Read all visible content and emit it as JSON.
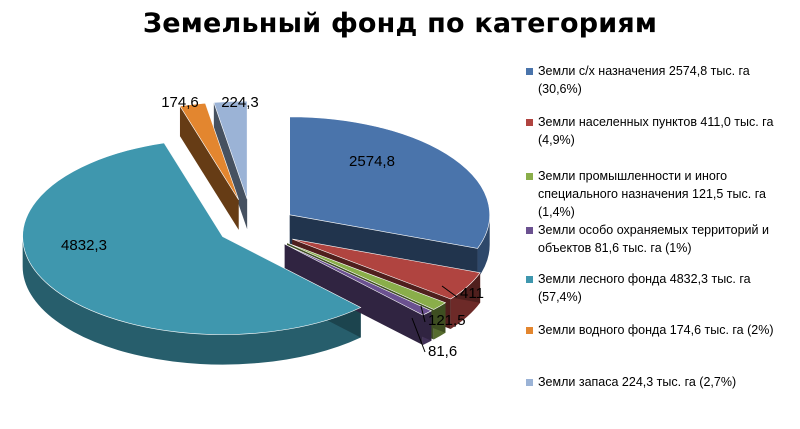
{
  "title": "Земельный фонд по категориям",
  "chart_data": {
    "type": "pie",
    "title": "Земельный фонд по категориям",
    "unit": "тыс. га",
    "style": "3d-exploded",
    "legend_position": "right",
    "slices": [
      {
        "name": "Земли с/х назначения",
        "value": 2574.8,
        "label": "2574,8",
        "color": "#4a74ab",
        "legend": "Земли с/х назначения 2574,8 тыс. га (30,6%)"
      },
      {
        "name": "Земли населенных пунктов",
        "value": 411.0,
        "label": "411",
        "color": "#b04440",
        "legend": "Земли населенных пунктов 411,0 тыс. га (4,9%)"
      },
      {
        "name": "Земли промышленности и иного специального назначения",
        "value": 121.5,
        "label": "121,5",
        "color": "#8aae4a",
        "legend": "Земли промышленности и иного специального назначения 121,5 тыс. га (1,4%)"
      },
      {
        "name": "Земли особо охраняемых территорий и объектов",
        "value": 81.6,
        "label": "81,6",
        "color": "#6b5190",
        "legend": "Земли особо охраняемых территорий и объектов 81,6 тыс. га (1%)"
      },
      {
        "name": "Земли лесного фонда",
        "value": 4832.3,
        "label": "4832,3",
        "color": "#3f97ae",
        "legend": "Земли лесного фонда 4832,3 тыс. га (57,4%)"
      },
      {
        "name": "Земли водного фонда",
        "value": 174.6,
        "label": "174,6",
        "color": "#e3862f",
        "legend": "Земли водного фонда 174,6 тыс. га (2%)"
      },
      {
        "name": "Земли запаса",
        "value": 224.3,
        "label": "224,3",
        "color": "#9bb3d6",
        "legend": "Земли запаса 224,3 тыс. га (2,7%)"
      }
    ]
  }
}
